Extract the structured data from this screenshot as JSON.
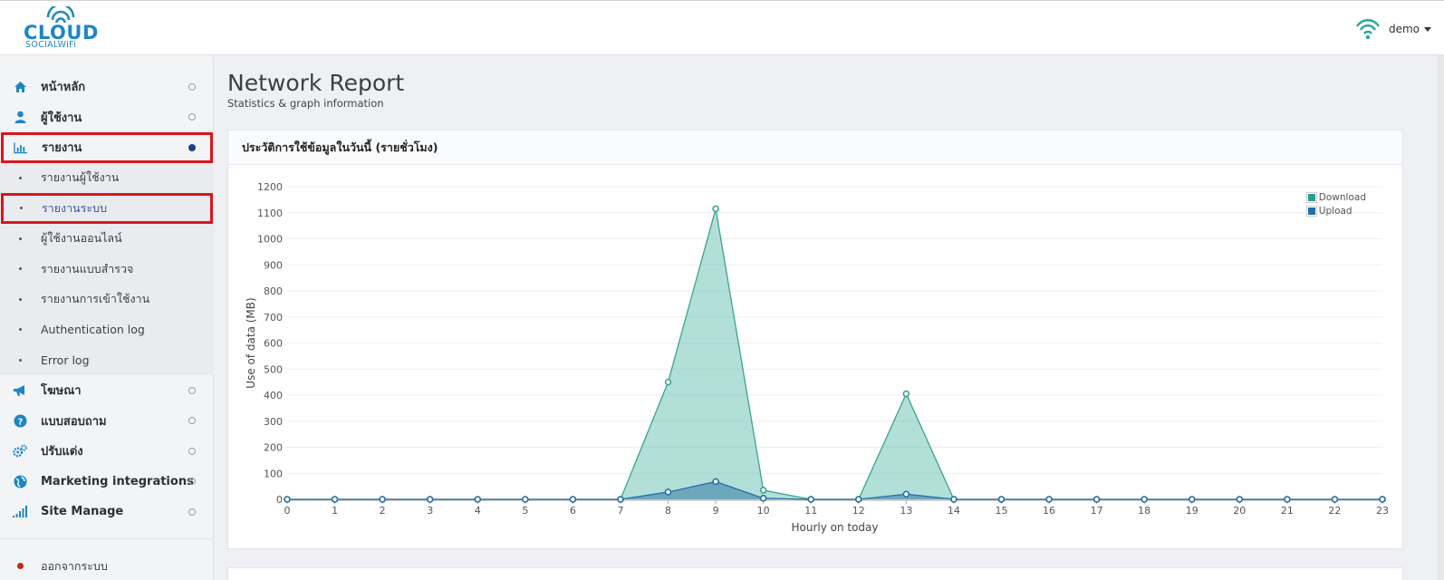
{
  "brand": {
    "name": "CLOUD",
    "tagline": "SOCIALWiFi"
  },
  "user": {
    "name": "demo"
  },
  "sidebar": {
    "items": [
      {
        "label": "หน้าหลัก",
        "icon": "home-icon"
      },
      {
        "label": "ผู้ใช้งาน",
        "icon": "user-icon"
      },
      {
        "label": "รายงาน",
        "icon": "bar-chart-icon",
        "active": true
      },
      {
        "label": "โฆษณา",
        "icon": "megaphone-icon"
      },
      {
        "label": "แบบสอบถาม",
        "icon": "question-icon"
      },
      {
        "label": "ปรับแต่ง",
        "icon": "gears-icon"
      },
      {
        "label": "Marketing integrations",
        "icon": "globe-icon"
      },
      {
        "label": "Site Manage",
        "icon": "signal-icon"
      }
    ],
    "report_sub": [
      {
        "label": "รายงานผู้ใช้งาน"
      },
      {
        "label": "รายงานระบบ",
        "active": true
      },
      {
        "label": "ผู้ใช้งานออนไลน์"
      },
      {
        "label": "รายงานแบบสำรวจ"
      },
      {
        "label": "รายงานการเข้าใช้งาน"
      },
      {
        "label": "Authentication log"
      },
      {
        "label": "Error log"
      }
    ],
    "logout_label": "ออกจากระบบ"
  },
  "page": {
    "title": "Network Report",
    "subtitle": "Statistics & graph information"
  },
  "panel": {
    "title": "ประวัติการใช้ข้อมูลในวันนี้ (รายชั่วโมง)"
  },
  "colors": {
    "brand": "#1d86c4",
    "download": "#2a9d8f",
    "upload": "#1f6fa8",
    "highlight": "#d9161c"
  },
  "chart_data": {
    "type": "area",
    "xlabel": "Hourly on today",
    "ylabel": "Use of data (MB)",
    "x": [
      0,
      1,
      2,
      3,
      4,
      5,
      6,
      7,
      8,
      9,
      10,
      11,
      12,
      13,
      14,
      15,
      16,
      17,
      18,
      19,
      20,
      21,
      22,
      23
    ],
    "ylim": [
      0,
      1200
    ],
    "yticks": [
      0,
      100,
      200,
      300,
      400,
      500,
      600,
      700,
      800,
      900,
      1000,
      1100,
      1200
    ],
    "grid": true,
    "legend_position": "top-right",
    "series": [
      {
        "name": "Download",
        "values": [
          0,
          0,
          0,
          0,
          0,
          0,
          0,
          0,
          450,
          1115,
          35,
          0,
          0,
          405,
          0,
          0,
          0,
          0,
          0,
          0,
          0,
          0,
          0,
          0
        ]
      },
      {
        "name": "Upload",
        "values": [
          0,
          0,
          0,
          0,
          0,
          0,
          0,
          0,
          28,
          68,
          4,
          0,
          0,
          20,
          0,
          0,
          0,
          0,
          0,
          0,
          0,
          0,
          0,
          0
        ]
      }
    ]
  }
}
